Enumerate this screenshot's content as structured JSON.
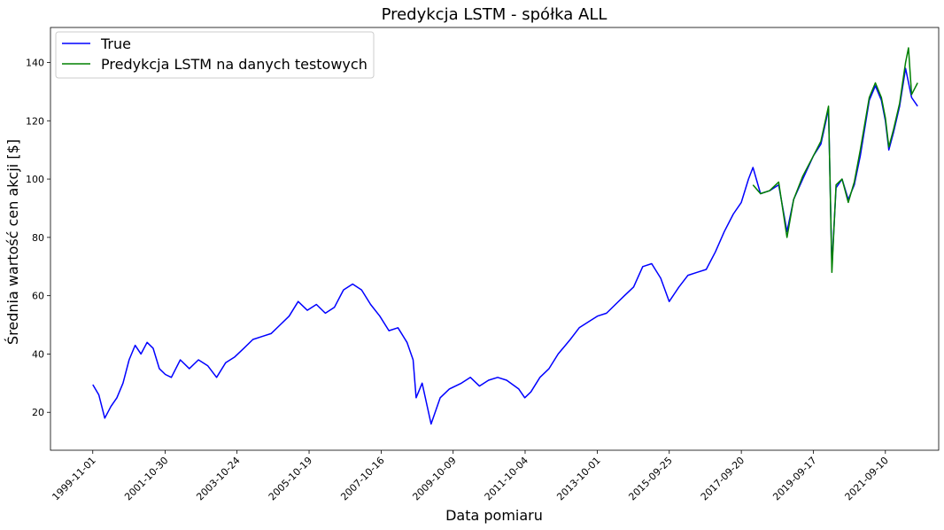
{
  "chart_data": {
    "type": "line",
    "title": "Predykcja LSTM - spółka ALL",
    "xlabel": "Data pomiaru",
    "ylabel": "Średnia wartość cen akcji [$]",
    "xlim": [
      "1998-09-01",
      "2023-03-01"
    ],
    "ylim": [
      7,
      152
    ],
    "yticks": [
      20,
      40,
      60,
      80,
      100,
      120,
      140
    ],
    "xticks": [
      "1999-11-01",
      "2001-10-30",
      "2003-10-24",
      "2005-10-19",
      "2007-10-16",
      "2009-10-09",
      "2011-10-04",
      "2013-10-01",
      "2015-09-25",
      "2017-09-20",
      "2019-09-17",
      "2021-09-10"
    ],
    "grid": false,
    "legend_position": "top-left",
    "series": [
      {
        "name": "True",
        "color": "#0000ff",
        "points": [
          [
            "1999-11-01",
            29.5
          ],
          [
            "2000-01-01",
            26
          ],
          [
            "2000-03-01",
            18
          ],
          [
            "2000-05-01",
            22
          ],
          [
            "2000-07-01",
            25
          ],
          [
            "2000-09-01",
            30
          ],
          [
            "2000-11-01",
            38
          ],
          [
            "2001-01-01",
            43
          ],
          [
            "2001-03-01",
            40
          ],
          [
            "2001-05-01",
            44
          ],
          [
            "2001-07-01",
            42
          ],
          [
            "2001-09-01",
            35
          ],
          [
            "2001-11-01",
            33
          ],
          [
            "2002-01-01",
            32
          ],
          [
            "2002-04-01",
            38
          ],
          [
            "2002-07-01",
            35
          ],
          [
            "2002-10-01",
            38
          ],
          [
            "2003-01-01",
            36
          ],
          [
            "2003-04-01",
            32
          ],
          [
            "2003-07-01",
            37
          ],
          [
            "2003-10-01",
            39
          ],
          [
            "2004-01-01",
            42
          ],
          [
            "2004-04-01",
            45
          ],
          [
            "2004-07-01",
            46
          ],
          [
            "2004-10-01",
            47
          ],
          [
            "2005-01-01",
            50
          ],
          [
            "2005-04-01",
            53
          ],
          [
            "2005-07-01",
            58
          ],
          [
            "2005-10-01",
            55
          ],
          [
            "2006-01-01",
            57
          ],
          [
            "2006-04-01",
            54
          ],
          [
            "2006-07-01",
            56
          ],
          [
            "2006-10-01",
            62
          ],
          [
            "2007-01-01",
            64
          ],
          [
            "2007-04-01",
            62
          ],
          [
            "2007-07-01",
            57
          ],
          [
            "2007-10-01",
            53
          ],
          [
            "2008-01-01",
            48
          ],
          [
            "2008-04-01",
            49
          ],
          [
            "2008-07-01",
            44
          ],
          [
            "2008-09-01",
            38
          ],
          [
            "2008-10-01",
            25
          ],
          [
            "2008-12-01",
            30
          ],
          [
            "2009-03-01",
            16
          ],
          [
            "2009-06-01",
            25
          ],
          [
            "2009-09-01",
            28
          ],
          [
            "2010-01-01",
            30
          ],
          [
            "2010-04-01",
            32
          ],
          [
            "2010-07-01",
            29
          ],
          [
            "2010-10-01",
            31
          ],
          [
            "2011-01-01",
            32
          ],
          [
            "2011-04-01",
            31
          ],
          [
            "2011-08-01",
            28
          ],
          [
            "2011-10-01",
            25
          ],
          [
            "2011-12-01",
            27
          ],
          [
            "2012-03-01",
            32
          ],
          [
            "2012-06-01",
            35
          ],
          [
            "2012-09-01",
            40
          ],
          [
            "2013-01-01",
            45
          ],
          [
            "2013-04-01",
            49
          ],
          [
            "2013-07-01",
            51
          ],
          [
            "2013-10-01",
            53
          ],
          [
            "2014-01-01",
            54
          ],
          [
            "2014-04-01",
            57
          ],
          [
            "2014-07-01",
            60
          ],
          [
            "2014-10-01",
            63
          ],
          [
            "2015-01-01",
            70
          ],
          [
            "2015-04-01",
            71
          ],
          [
            "2015-07-01",
            66
          ],
          [
            "2015-09-25",
            58
          ],
          [
            "2016-01-01",
            63
          ],
          [
            "2016-04-01",
            67
          ],
          [
            "2016-07-01",
            68
          ],
          [
            "2016-10-01",
            69
          ],
          [
            "2017-01-01",
            75
          ],
          [
            "2017-04-01",
            82
          ],
          [
            "2017-07-01",
            88
          ],
          [
            "2017-09-20",
            92
          ],
          [
            "2017-12-01",
            100
          ],
          [
            "2018-01-15",
            104
          ],
          [
            "2018-04-01",
            95
          ],
          [
            "2018-07-01",
            96
          ],
          [
            "2018-10-01",
            98
          ],
          [
            "2018-12-24",
            82
          ],
          [
            "2019-03-01",
            93
          ],
          [
            "2019-06-01",
            100
          ],
          [
            "2019-09-17",
            108
          ],
          [
            "2019-12-01",
            112
          ],
          [
            "2020-02-15",
            124
          ],
          [
            "2020-03-20",
            70
          ],
          [
            "2020-05-01",
            97
          ],
          [
            "2020-07-01",
            100
          ],
          [
            "2020-09-01",
            93
          ],
          [
            "2020-11-01",
            98
          ],
          [
            "2021-01-01",
            108
          ],
          [
            "2021-04-01",
            127
          ],
          [
            "2021-06-01",
            132
          ],
          [
            "2021-08-01",
            127
          ],
          [
            "2021-09-10",
            120
          ],
          [
            "2021-10-15",
            110
          ],
          [
            "2021-12-01",
            116
          ],
          [
            "2022-02-01",
            125
          ],
          [
            "2022-04-01",
            138
          ],
          [
            "2022-06-01",
            128
          ],
          [
            "2022-08-01",
            125
          ]
        ]
      },
      {
        "name": "Predykcja LSTM na danych testowych",
        "color": "#008000",
        "points": [
          [
            "2018-01-15",
            98
          ],
          [
            "2018-04-01",
            95
          ],
          [
            "2018-07-01",
            96
          ],
          [
            "2018-10-01",
            99
          ],
          [
            "2018-12-24",
            80
          ],
          [
            "2019-03-01",
            93
          ],
          [
            "2019-06-01",
            101
          ],
          [
            "2019-09-17",
            108
          ],
          [
            "2019-12-01",
            113
          ],
          [
            "2020-02-15",
            125
          ],
          [
            "2020-03-20",
            68
          ],
          [
            "2020-05-01",
            98
          ],
          [
            "2020-07-01",
            100
          ],
          [
            "2020-09-01",
            92
          ],
          [
            "2020-11-01",
            99
          ],
          [
            "2021-01-01",
            110
          ],
          [
            "2021-04-01",
            128
          ],
          [
            "2021-06-01",
            133
          ],
          [
            "2021-08-01",
            128
          ],
          [
            "2021-09-10",
            121
          ],
          [
            "2021-10-15",
            111
          ],
          [
            "2021-12-01",
            117
          ],
          [
            "2022-02-01",
            126
          ],
          [
            "2022-04-01",
            140
          ],
          [
            "2022-05-01",
            145
          ],
          [
            "2022-06-01",
            129
          ],
          [
            "2022-08-01",
            133
          ]
        ]
      }
    ]
  }
}
